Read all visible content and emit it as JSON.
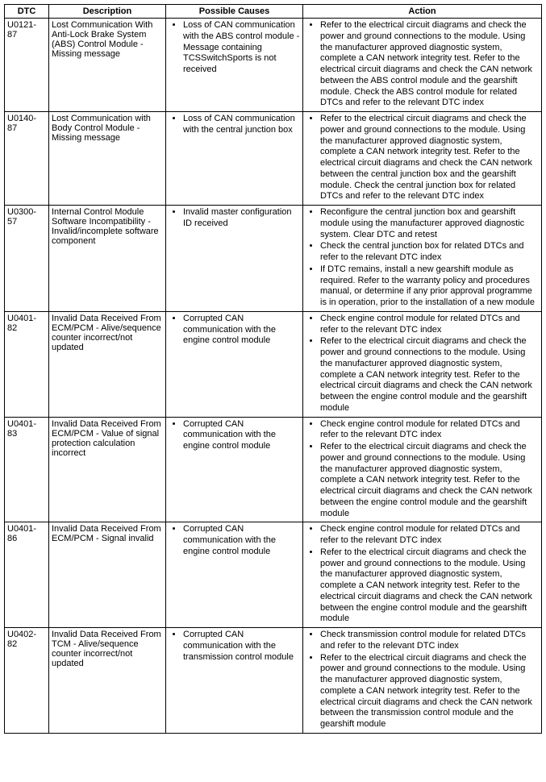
{
  "headers": {
    "dtc": "DTC",
    "description": "Description",
    "causes": "Possible Causes",
    "action": "Action"
  },
  "rows": [
    {
      "dtc": "U0121-87",
      "description": "Lost Communication With Anti-Lock Brake System (ABS) Control Module - Missing message",
      "causes": [
        "Loss of CAN communication with the ABS control module - Message containing TCSSwitchSports is not received"
      ],
      "actions": [
        "Refer to the electrical circuit diagrams and check the power and ground connections to the module. Using the manufacturer approved diagnostic system, complete a CAN network integrity test. Refer to the electrical circuit diagrams and check the CAN network between the ABS control module and the gearshift module. Check the ABS control module for related DTCs and refer to the relevant DTC index"
      ]
    },
    {
      "dtc": "U0140-87",
      "description": "Lost Communication with Body Control Module - Missing message",
      "causes": [
        "Loss of CAN communication with the central junction box"
      ],
      "actions": [
        "Refer to the electrical circuit diagrams and check the power and ground connections to the module. Using the manufacturer approved diagnostic system, complete a CAN network integrity test. Refer to the electrical circuit diagrams and check the CAN network between the central junction box and the gearshift module. Check the central junction box for related DTCs and refer to the relevant DTC index"
      ]
    },
    {
      "dtc": "U0300-57",
      "description": "Internal Control Module Software Incompatibility - Invalid/incomplete software component",
      "causes": [
        "Invalid master configuration ID received"
      ],
      "actions": [
        "Reconfigure the central junction box and gearshift module using the manufacturer approved diagnostic system. Clear DTC and retest",
        "Check the central junction box for related DTCs and refer to the relevant DTC index",
        "If DTC remains, install a new gearshift module as required. Refer to the warranty policy and procedures manual, or determine if any prior approval programme is in operation, prior to the installation of a new module"
      ]
    },
    {
      "dtc": "U0401-82",
      "description": "Invalid Data Received From ECM/PCM - Alive/sequence counter incorrect/not updated",
      "causes": [
        "Corrupted CAN communication with the engine control module"
      ],
      "actions": [
        "Check engine control module for related DTCs and refer to the relevant DTC index",
        "Refer to the electrical circuit diagrams and check the power and ground connections to the module. Using the manufacturer approved diagnostic system, complete a CAN network integrity test. Refer to the electrical circuit diagrams and check the CAN network between the engine control module and the gearshift module"
      ]
    },
    {
      "dtc": "U0401-83",
      "description": "Invalid Data Received From ECM/PCM - Value of signal protection calculation incorrect",
      "causes": [
        "Corrupted CAN communication with the engine control module"
      ],
      "actions": [
        "Check engine control module for related DTCs and refer to the relevant DTC index",
        "Refer to the electrical circuit diagrams and check the power and ground connections to the module. Using the manufacturer approved diagnostic system, complete a CAN network integrity test. Refer to the electrical circuit diagrams and check the CAN network between the engine control module and the gearshift module"
      ]
    },
    {
      "dtc": "U0401-86",
      "description": "Invalid Data Received From ECM/PCM - Signal invalid",
      "causes": [
        "Corrupted CAN communication with the engine control module"
      ],
      "actions": [
        "Check engine control module for related DTCs and refer to the relevant DTC index",
        "Refer to the electrical circuit diagrams and check the power and ground connections to the module. Using the manufacturer approved diagnostic system, complete a CAN network integrity test. Refer to the electrical circuit diagrams and check the CAN network between the engine control module and the gearshift module"
      ]
    },
    {
      "dtc": "U0402-82",
      "description": "Invalid Data Received From TCM - Alive/sequence counter incorrect/not updated",
      "causes": [
        "Corrupted CAN communication with the transmission control module"
      ],
      "actions": [
        "Check transmission control module for related DTCs and refer to the relevant DTC index",
        "Refer to the electrical circuit diagrams and check the power and ground connections to the module. Using the manufacturer approved diagnostic system, complete a CAN network integrity test. Refer to the electrical circuit diagrams and check the CAN network between the transmission control module and the gearshift module"
      ]
    }
  ]
}
